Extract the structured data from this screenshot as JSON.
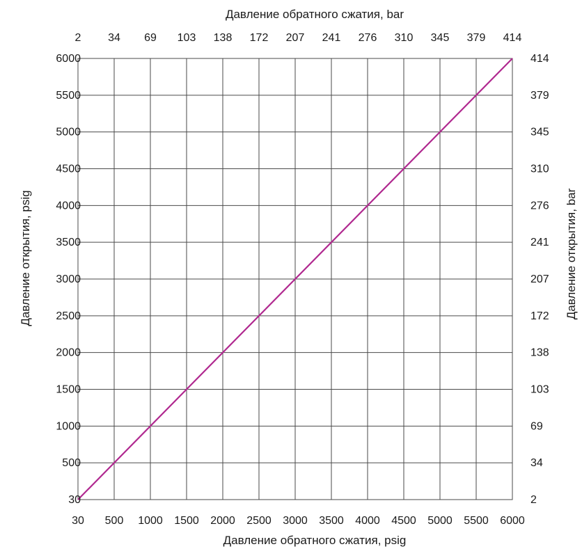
{
  "chart_data": {
    "type": "line",
    "title": "",
    "xlabel": "Давление обратного сжатия, psig",
    "ylabel": "Давление открытия, psig",
    "x2label": "Давление обратного сжатия, bar",
    "y2label": "Давление открытия, bar",
    "x_ticks": [
      "30",
      "500",
      "1000",
      "1500",
      "2000",
      "2500",
      "3000",
      "3500",
      "4000",
      "4500",
      "5000",
      "5500",
      "6000"
    ],
    "y_ticks": [
      "30",
      "500",
      "1000",
      "1500",
      "2000",
      "2500",
      "3000",
      "3500",
      "4000",
      "4500",
      "5000",
      "5500",
      "6000"
    ],
    "x2_ticks": [
      "2",
      "34",
      "69",
      "103",
      "138",
      "172",
      "207",
      "241",
      "276",
      "310",
      "345",
      "379",
      "414"
    ],
    "y2_ticks": [
      "2",
      "34",
      "69",
      "103",
      "138",
      "172",
      "207",
      "241",
      "276",
      "310",
      "345",
      "379",
      "414"
    ],
    "xlim": [
      30,
      6000
    ],
    "ylim": [
      30,
      6000
    ],
    "grid": true,
    "series": [
      {
        "color": "#b0288f",
        "x": [
          30,
          6000
        ],
        "y": [
          30,
          6000
        ]
      }
    ]
  }
}
